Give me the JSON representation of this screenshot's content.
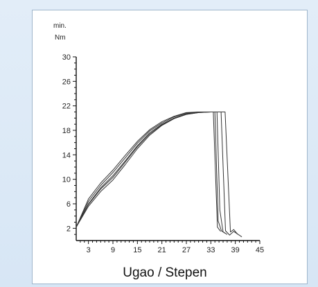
{
  "chart_data": {
    "type": "line",
    "ylabel_line1": "min.",
    "ylabel_line2": "Nm",
    "xlabel": "Ugao / Stepen",
    "xlim": [
      0,
      45
    ],
    "ylim": [
      0,
      30
    ],
    "x_ticks": [
      3,
      9,
      15,
      21,
      27,
      33,
      39,
      45
    ],
    "y_ticks": [
      2,
      6,
      10,
      14,
      18,
      22,
      26,
      30
    ],
    "grid": false,
    "series": [
      {
        "values": [
          [
            0,
            2.2
          ],
          [
            3,
            5.6
          ],
          [
            6,
            8.0
          ],
          [
            9,
            9.9
          ],
          [
            12,
            12.4
          ],
          [
            15,
            15.0
          ],
          [
            18,
            17.2
          ],
          [
            21,
            18.8
          ],
          [
            24,
            19.9
          ],
          [
            27,
            20.6
          ],
          [
            30,
            20.9
          ],
          [
            33,
            21.0
          ],
          [
            34.5,
            21.0
          ],
          [
            35.2,
            5.0
          ],
          [
            36.0,
            1.4
          ],
          [
            37,
            1.0
          ]
        ]
      },
      {
        "values": [
          [
            0,
            2.2
          ],
          [
            3,
            6.0
          ],
          [
            6,
            8.6
          ],
          [
            9,
            10.6
          ],
          [
            12,
            13.0
          ],
          [
            15,
            15.5
          ],
          [
            18,
            17.6
          ],
          [
            21,
            19.0
          ],
          [
            24,
            20.0
          ],
          [
            27,
            20.6
          ],
          [
            30,
            20.9
          ],
          [
            33,
            21.0
          ],
          [
            34.0,
            21.0
          ],
          [
            34.8,
            3.2
          ],
          [
            35.6,
            1.6
          ],
          [
            36.5,
            1.2
          ]
        ]
      },
      {
        "values": [
          [
            0,
            2.2
          ],
          [
            3,
            6.4
          ],
          [
            6,
            9.0
          ],
          [
            9,
            11.1
          ],
          [
            12,
            13.5
          ],
          [
            15,
            15.9
          ],
          [
            18,
            17.9
          ],
          [
            21,
            19.2
          ],
          [
            24,
            20.2
          ],
          [
            27,
            20.8
          ],
          [
            30,
            21.0
          ],
          [
            33,
            21.0
          ],
          [
            33.6,
            21.0
          ],
          [
            34.6,
            2.2
          ],
          [
            35.4,
            1.5
          ]
        ]
      },
      {
        "values": [
          [
            0,
            2.2
          ],
          [
            3,
            6.8
          ],
          [
            6,
            9.4
          ],
          [
            9,
            11.5
          ],
          [
            12,
            13.9
          ],
          [
            15,
            16.2
          ],
          [
            18,
            18.1
          ],
          [
            21,
            19.4
          ],
          [
            24,
            20.3
          ],
          [
            27,
            20.9
          ],
          [
            30,
            21.0
          ],
          [
            33,
            21.0
          ],
          [
            36.5,
            21.0
          ],
          [
            37.8,
            1.4
          ],
          [
            38.6,
            1.8
          ],
          [
            39.6,
            1.0
          ]
        ]
      },
      {
        "values": [
          [
            0,
            2.2
          ],
          [
            3,
            5.9
          ],
          [
            6,
            8.4
          ],
          [
            9,
            10.3
          ],
          [
            12,
            12.8
          ],
          [
            15,
            15.3
          ],
          [
            18,
            17.4
          ],
          [
            21,
            18.9
          ],
          [
            24,
            20.0
          ],
          [
            27,
            20.7
          ],
          [
            30,
            21.0
          ],
          [
            33,
            21.0
          ],
          [
            35.5,
            21.0
          ],
          [
            36.6,
            1.6
          ],
          [
            37.6,
            0.9
          ],
          [
            38.6,
            1.5
          ],
          [
            40.6,
            0.6
          ]
        ]
      }
    ],
    "colors": {
      "line": "#333333",
      "axis": "#111111"
    }
  }
}
